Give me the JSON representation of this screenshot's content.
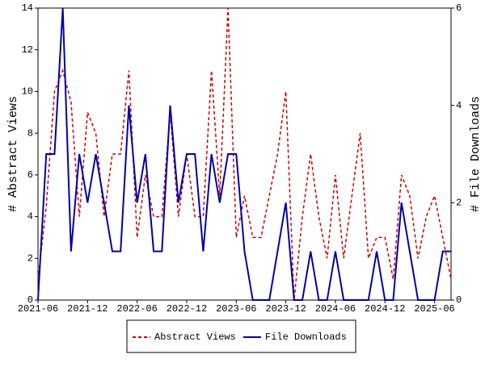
{
  "chart_data": {
    "type": "line",
    "x": [
      "2021-06",
      "2021-07",
      "2021-08",
      "2021-09",
      "2021-10",
      "2021-11",
      "2021-12",
      "2022-01",
      "2022-02",
      "2022-03",
      "2022-04",
      "2022-05",
      "2022-06",
      "2022-07",
      "2022-08",
      "2022-09",
      "2022-10",
      "2022-11",
      "2022-12",
      "2023-01",
      "2023-02",
      "2023-03",
      "2023-04",
      "2023-05",
      "2023-06",
      "2023-07",
      "2023-08",
      "2023-09",
      "2023-10",
      "2023-11",
      "2023-12",
      "2024-01",
      "2024-02",
      "2024-03",
      "2024-04",
      "2024-05",
      "2024-06",
      "2024-07",
      "2024-08",
      "2024-09",
      "2024-10",
      "2024-11",
      "2024-12",
      "2025-01",
      "2025-02",
      "2025-03",
      "2025-04",
      "2025-05",
      "2025-06",
      "2025-07",
      "2025-08"
    ],
    "xticks": [
      "2021-06",
      "2021-12",
      "2022-06",
      "2022-12",
      "2023-06",
      "2023-12",
      "2024-06",
      "2024-12",
      "2025-06"
    ],
    "ylabel": "# Abstract Views",
    "y2label": "# File Downloads",
    "ylim": [
      0,
      14
    ],
    "yticks": [
      0,
      2,
      4,
      6,
      8,
      10,
      12,
      14
    ],
    "y2lim": [
      0,
      6
    ],
    "y2ticks": [
      0,
      2,
      4,
      6
    ],
    "legend": "bottom",
    "series": [
      {
        "name": "Abstract Views",
        "color": "#cc0000",
        "dash": true,
        "values": [
          1,
          4.5,
          10,
          11,
          9.5,
          4,
          9,
          8,
          4,
          7,
          7,
          11,
          3,
          6,
          4,
          4,
          9,
          4,
          7,
          4,
          4,
          11,
          5,
          14,
          3,
          5,
          3,
          3,
          5,
          7,
          10,
          0,
          4,
          7,
          4,
          2,
          6,
          2,
          5,
          8,
          2,
          3,
          3,
          1,
          6,
          5,
          2,
          4,
          5,
          3,
          1
        ]
      },
      {
        "name": "File Downloads",
        "color": "#0000aa",
        "axis": "y2",
        "values": [
          0,
          3,
          3,
          6,
          1,
          3,
          2,
          3,
          2,
          1,
          1,
          4,
          2,
          3,
          1,
          1,
          4,
          2,
          3,
          3,
          1,
          3,
          2,
          3,
          3,
          1,
          0,
          0,
          0,
          1,
          2,
          0,
          0,
          1,
          0,
          0,
          1,
          0,
          0,
          0,
          0,
          1,
          0,
          0,
          2,
          1,
          0,
          0,
          0,
          1,
          1
        ]
      }
    ]
  }
}
